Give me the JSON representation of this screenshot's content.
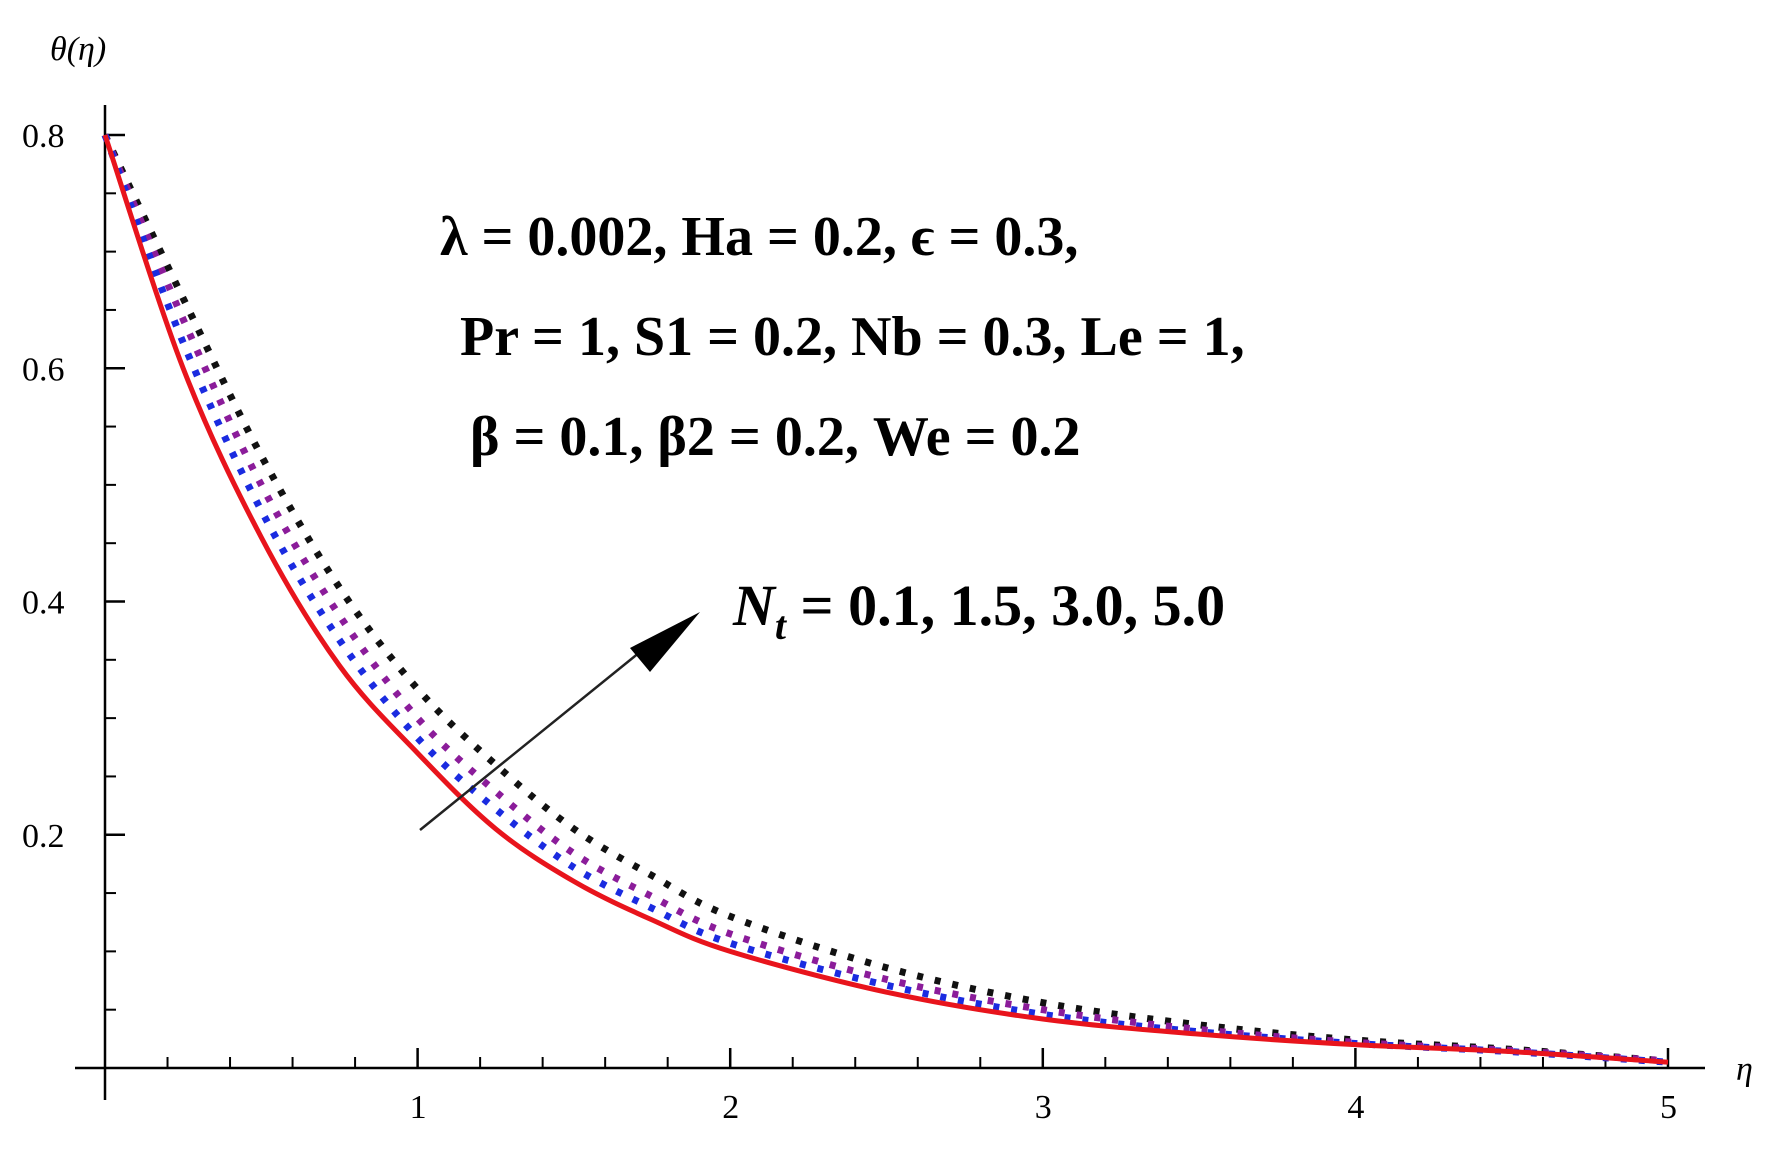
{
  "chart_data": {
    "type": "line",
    "xlabel": "η",
    "ylabel": "θ(η)",
    "xlim": [
      0,
      5
    ],
    "ylim": [
      0,
      0.8
    ],
    "x_ticks": [
      "1",
      "2",
      "3",
      "4",
      "5"
    ],
    "y_ticks": [
      "0.2",
      "0.4",
      "0.6",
      "0.8"
    ],
    "annotations": {
      "params_line1": "λ = 0.002,  Ha = 0.2,  ϵ = 0.3,",
      "params_line2": "Pr = 1,  S1 = 0.2,  Nb = 0.3, Le = 1,",
      "params_line3": "β = 0.1,  β2 = 0.2,  We = 0.2",
      "nt_symbol": "N",
      "nt_subscript": "t",
      "nt_values": " = 0.1, 1.5, 3.0, 5.0"
    },
    "series": [
      {
        "color": "#e8141c",
        "style": "solid",
        "x": [
          0,
          0.25,
          0.5,
          0.75,
          1,
          1.25,
          1.5,
          1.75,
          2,
          2.5,
          3,
          3.5,
          4,
          4.5,
          5
        ],
        "values": [
          0.8,
          0.6,
          0.455,
          0.345,
          0.27,
          0.205,
          0.16,
          0.127,
          0.1,
          0.065,
          0.042,
          0.029,
          0.02,
          0.014,
          0.005
        ]
      },
      {
        "color": "#1a2be0",
        "style": "dotted",
        "x": [
          0,
          0.25,
          0.5,
          0.75,
          1,
          1.25,
          1.5,
          1.75,
          2,
          2.5,
          3,
          3.5,
          4,
          4.5,
          5
        ],
        "values": [
          0.8,
          0.622,
          0.478,
          0.367,
          0.283,
          0.222,
          0.172,
          0.137,
          0.107,
          0.071,
          0.046,
          0.031,
          0.021,
          0.014,
          0.005
        ]
      },
      {
        "color": "#8b1c9a",
        "style": "dotted",
        "x": [
          0,
          0.25,
          0.5,
          0.75,
          1,
          1.25,
          1.5,
          1.75,
          2,
          2.5,
          3,
          3.5,
          4,
          4.5,
          5
        ],
        "values": [
          0.8,
          0.642,
          0.5,
          0.388,
          0.3,
          0.237,
          0.184,
          0.147,
          0.115,
          0.076,
          0.05,
          0.033,
          0.022,
          0.015,
          0.006
        ]
      },
      {
        "color": "#111111",
        "style": "dotted",
        "x": [
          0,
          0.25,
          0.5,
          0.75,
          1,
          1.25,
          1.5,
          1.75,
          2,
          2.5,
          3,
          3.5,
          4,
          4.5,
          5
        ],
        "values": [
          0.8,
          0.66,
          0.525,
          0.412,
          0.325,
          0.26,
          0.205,
          0.165,
          0.13,
          0.086,
          0.056,
          0.037,
          0.024,
          0.016,
          0.006
        ]
      }
    ]
  }
}
